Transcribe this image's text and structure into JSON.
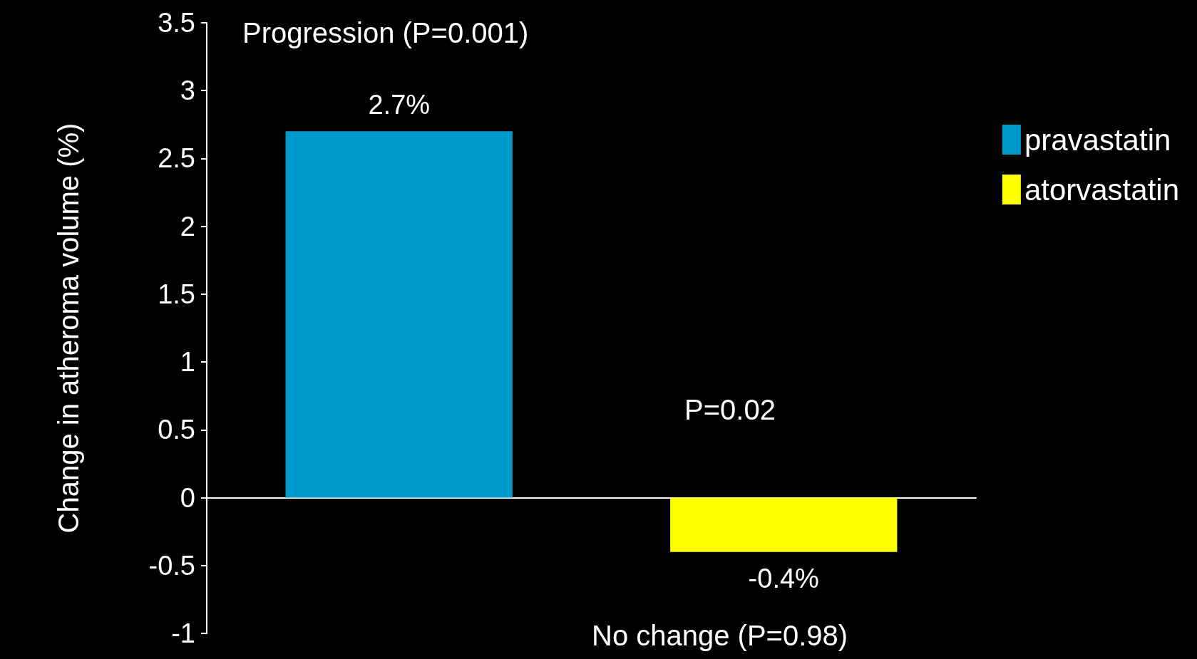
{
  "chart_data": {
    "type": "bar",
    "ylabel": "Change in atheroma volume (%)",
    "categories": [
      null,
      null
    ],
    "series": [
      {
        "name": "pravastatin",
        "color": "#0099cc",
        "values": [
          2.7,
          null
        ],
        "value_labels": [
          "2.7%",
          null
        ]
      },
      {
        "name": "atorvastatin",
        "color": "#ffff00",
        "values": [
          null,
          -0.4
        ],
        "value_labels": [
          null,
          "-0.4%"
        ]
      }
    ],
    "ylim": [
      -1,
      3.5
    ],
    "yticks": [
      -1,
      -0.5,
      0,
      0.5,
      1,
      1.5,
      2,
      2.5,
      3,
      3.5
    ],
    "annotations": [
      "Progression (P=0.001)",
      "P=0.02",
      "No change (P=0.98)"
    ],
    "legend": "right"
  }
}
